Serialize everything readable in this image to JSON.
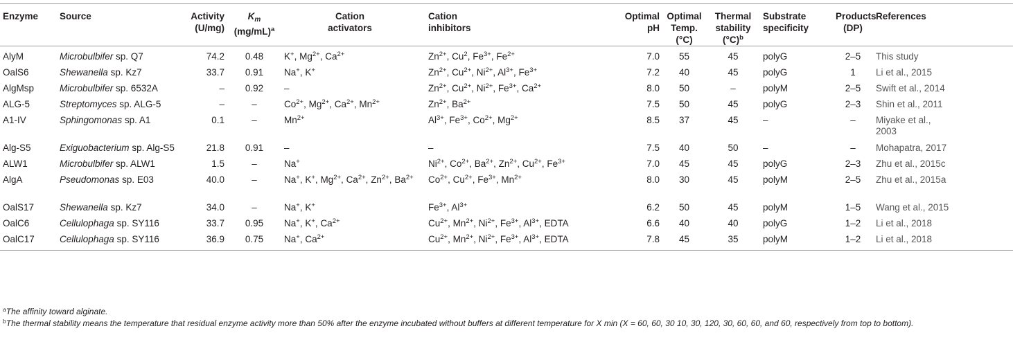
{
  "table": {
    "headers": {
      "enzyme": "Enzyme",
      "source": "Source",
      "activity": [
        "Activity",
        "(U/mg)"
      ],
      "km": {
        "symbol": "K",
        "sub": "m",
        "unit": "(mg/mL)",
        "mark": "a"
      },
      "activators": [
        "Cation",
        "activators"
      ],
      "inhibitors": [
        "Cation",
        "inhibitors"
      ],
      "ph": [
        "Optimal",
        "pH"
      ],
      "temp": [
        "Optimal",
        "Temp.",
        "(°C)"
      ],
      "thermal": {
        "lines": [
          "Thermal",
          "stability"
        ],
        "unit": "(°C)",
        "mark": "b"
      },
      "substrate": [
        "Substrate",
        "specificity"
      ],
      "products": [
        "Products",
        "(DP)"
      ],
      "references": "References"
    },
    "rows": [
      {
        "enzyme": "AlyM",
        "genus": "Microbulbifer",
        "strain": "sp. Q7",
        "activity": "74.2",
        "km": "0.48",
        "activators": [
          [
            "K",
            "+"
          ],
          [
            "Mg",
            "2+"
          ],
          [
            "Ca",
            "2+"
          ]
        ],
        "inhibitors": [
          [
            "Zn",
            "2+"
          ],
          [
            "Cu",
            "2"
          ],
          [
            "Fe",
            "3+"
          ],
          [
            "Fe",
            "2+"
          ]
        ],
        "ph": "7.0",
        "temp": "55",
        "thermal": "45",
        "substrate": "polyG",
        "products": "2–5",
        "ref": [
          "This study"
        ]
      },
      {
        "enzyme": "OalS6",
        "genus": "Shewanella",
        "strain": "sp. Kz7",
        "activity": "33.7",
        "km": "0.91",
        "activators": [
          [
            "Na",
            "+"
          ],
          [
            "K",
            "+"
          ]
        ],
        "inhibitors": [
          [
            "Zn",
            "2+"
          ],
          [
            "Cu",
            "2+"
          ],
          [
            "Ni",
            "2+"
          ],
          [
            "Al",
            "3+"
          ],
          [
            "Fe",
            "3+"
          ]
        ],
        "ph": "7.2",
        "temp": "40",
        "thermal": "45",
        "substrate": "polyG",
        "products": "1",
        "ref": [
          "Li et al., 2015"
        ]
      },
      {
        "enzyme": "AlgMsp",
        "genus": "Microbulbifer",
        "strain": "sp. 6532A",
        "activity": "–",
        "km": "0.92",
        "activators": "–",
        "inhibitors": [
          [
            "Zn",
            "2+"
          ],
          [
            "Cu",
            "2+"
          ],
          [
            "Ni",
            "2+"
          ],
          [
            "Fe",
            "3+"
          ],
          [
            "Ca",
            "2+"
          ]
        ],
        "ph": "8.0",
        "temp": "50",
        "thermal": "–",
        "substrate": "polyM",
        "products": "2–5",
        "ref": [
          "Swift et al., 2014"
        ]
      },
      {
        "enzyme": "ALG-5",
        "genus": "Streptomyces",
        "strain": "sp. ALG-5",
        "activity": "–",
        "km": "–",
        "activators": [
          [
            "Co",
            "2+"
          ],
          [
            "Mg",
            "2+"
          ],
          [
            "Ca",
            "2+"
          ],
          [
            "Mn",
            "2+"
          ]
        ],
        "inhibitors": [
          [
            "Zn",
            "2+"
          ],
          [
            "Ba",
            "2+"
          ]
        ],
        "ph": "7.5",
        "temp": "50",
        "thermal": "45",
        "substrate": "polyG",
        "products": "2–3",
        "ref": [
          "Shin et al., 2011"
        ]
      },
      {
        "enzyme": "A1-IV",
        "genus": "Sphingomonas",
        "strain": "sp. A1",
        "activity": "0.1",
        "km": "–",
        "activators": [
          [
            "Mn",
            "2+"
          ]
        ],
        "inhibitors": [
          [
            "Al",
            "3+"
          ],
          [
            "Fe",
            "3+"
          ],
          [
            "Co",
            "2+"
          ],
          [
            "Mg",
            "2+"
          ]
        ],
        "ph": "8.5",
        "temp": "37",
        "thermal": "45",
        "substrate": "–",
        "products": "–",
        "ref": [
          "Miyake et al.,",
          "2003"
        ]
      },
      {
        "enzyme": "Alg-S5",
        "genus": "Exiguobacterium",
        "strain": "sp. Alg-S5",
        "activity": "21.8",
        "km": "0.91",
        "activators": "–",
        "inhibitors": "–",
        "ph": "7.5",
        "temp": "40",
        "thermal": "50",
        "substrate": "–",
        "products": "–",
        "ref": [
          "Mohapatra, 2017"
        ]
      },
      {
        "enzyme": "ALW1",
        "genus": "Microbulbifer",
        "strain": "sp. ALW1",
        "activity": "1.5",
        "km": "–",
        "activators": [
          [
            "Na",
            "+"
          ]
        ],
        "inhibitors": [
          [
            "Ni",
            "2+"
          ],
          [
            "Co",
            "2+"
          ],
          [
            "Ba",
            "2+"
          ],
          [
            "Zn",
            "2+"
          ],
          [
            "Cu",
            "2+"
          ],
          [
            "Fe",
            "3+"
          ]
        ],
        "ph": "7.0",
        "temp": "45",
        "thermal": "45",
        "substrate": "polyG",
        "products": "2–3",
        "ref": [
          "Zhu et al., 2015c"
        ]
      },
      {
        "enzyme": "AlgA",
        "genus": "Pseudomonas",
        "strain": "sp. E03",
        "activity": "40.0",
        "km": "–",
        "activators": [
          [
            "Na",
            "+"
          ],
          [
            "K",
            "+"
          ],
          [
            "Mg",
            "2+"
          ],
          [
            "Ca",
            "2+"
          ],
          [
            "Zn",
            "2+"
          ],
          [
            "Ba",
            "2+"
          ]
        ],
        "inhibitors": [
          [
            "Co",
            "2+"
          ],
          [
            "Cu",
            "2+"
          ],
          [
            "Fe",
            "3+"
          ],
          [
            "Mn",
            "2+"
          ]
        ],
        "ph": "8.0",
        "temp": "30",
        "thermal": "45",
        "substrate": "polyM",
        "products": "2–5",
        "ref": [
          "Zhu et al., 2015a"
        ]
      },
      {
        "enzyme": "OalS17",
        "genus": "Shewanella",
        "strain": "sp. Kz7",
        "activity": "34.0",
        "km": "–",
        "activators": [
          [
            "Na",
            "+"
          ],
          [
            "K",
            "+"
          ]
        ],
        "inhibitors": [
          [
            "Fe",
            "3+"
          ],
          [
            "Al",
            "3+"
          ]
        ],
        "ph": "6.2",
        "temp": "50",
        "thermal": "45",
        "substrate": "polyM",
        "products": "1–5",
        "ref": [
          "Wang et al., 2015"
        ]
      },
      {
        "enzyme": "OalC6",
        "genus": "Cellulophaga",
        "strain": "sp. SY116",
        "activity": "33.7",
        "km": "0.95",
        "activators": [
          [
            "Na",
            "+"
          ],
          [
            "K",
            "+"
          ],
          [
            "Ca",
            "2+"
          ]
        ],
        "inhibitors": [
          [
            "Cu",
            "2+"
          ],
          [
            "Mn",
            "2+"
          ],
          [
            "Ni",
            "2+"
          ],
          [
            "Fe",
            "3+"
          ],
          [
            "Al",
            "3+"
          ],
          [
            "EDTA",
            ""
          ]
        ],
        "ph": "6.6",
        "temp": "40",
        "thermal": "40",
        "substrate": "polyG",
        "products": "1–2",
        "ref": [
          "Li et al., 2018"
        ]
      },
      {
        "enzyme": "OalC17",
        "genus": "Cellulophaga",
        "strain": "sp. SY116",
        "activity": "36.9",
        "km": "0.75",
        "activators": [
          [
            "Na",
            "+"
          ],
          [
            "Ca",
            "2+"
          ]
        ],
        "inhibitors": [
          [
            "Cu",
            "2+"
          ],
          [
            "Mn",
            "2+"
          ],
          [
            "Ni",
            "2+"
          ],
          [
            "Fe",
            "3+"
          ],
          [
            "Al",
            "3+"
          ],
          [
            "EDTA",
            ""
          ]
        ],
        "ph": "7.8",
        "temp": "45",
        "thermal": "35",
        "substrate": "polyM",
        "products": "1–2",
        "ref": [
          "Li et al., 2018"
        ]
      }
    ]
  },
  "footnotes": {
    "a": {
      "mark": "a",
      "text": "The affinity toward alginate."
    },
    "b": {
      "mark": "b",
      "text": "The thermal stability means the temperature that residual enzyme activity more than 50% after the enzyme incubated without buffers at different temperature for X min (X = 60, 60, 30 10, 30, 120, 30, 60, 60, and 60, respectively from top to bottom)."
    }
  }
}
